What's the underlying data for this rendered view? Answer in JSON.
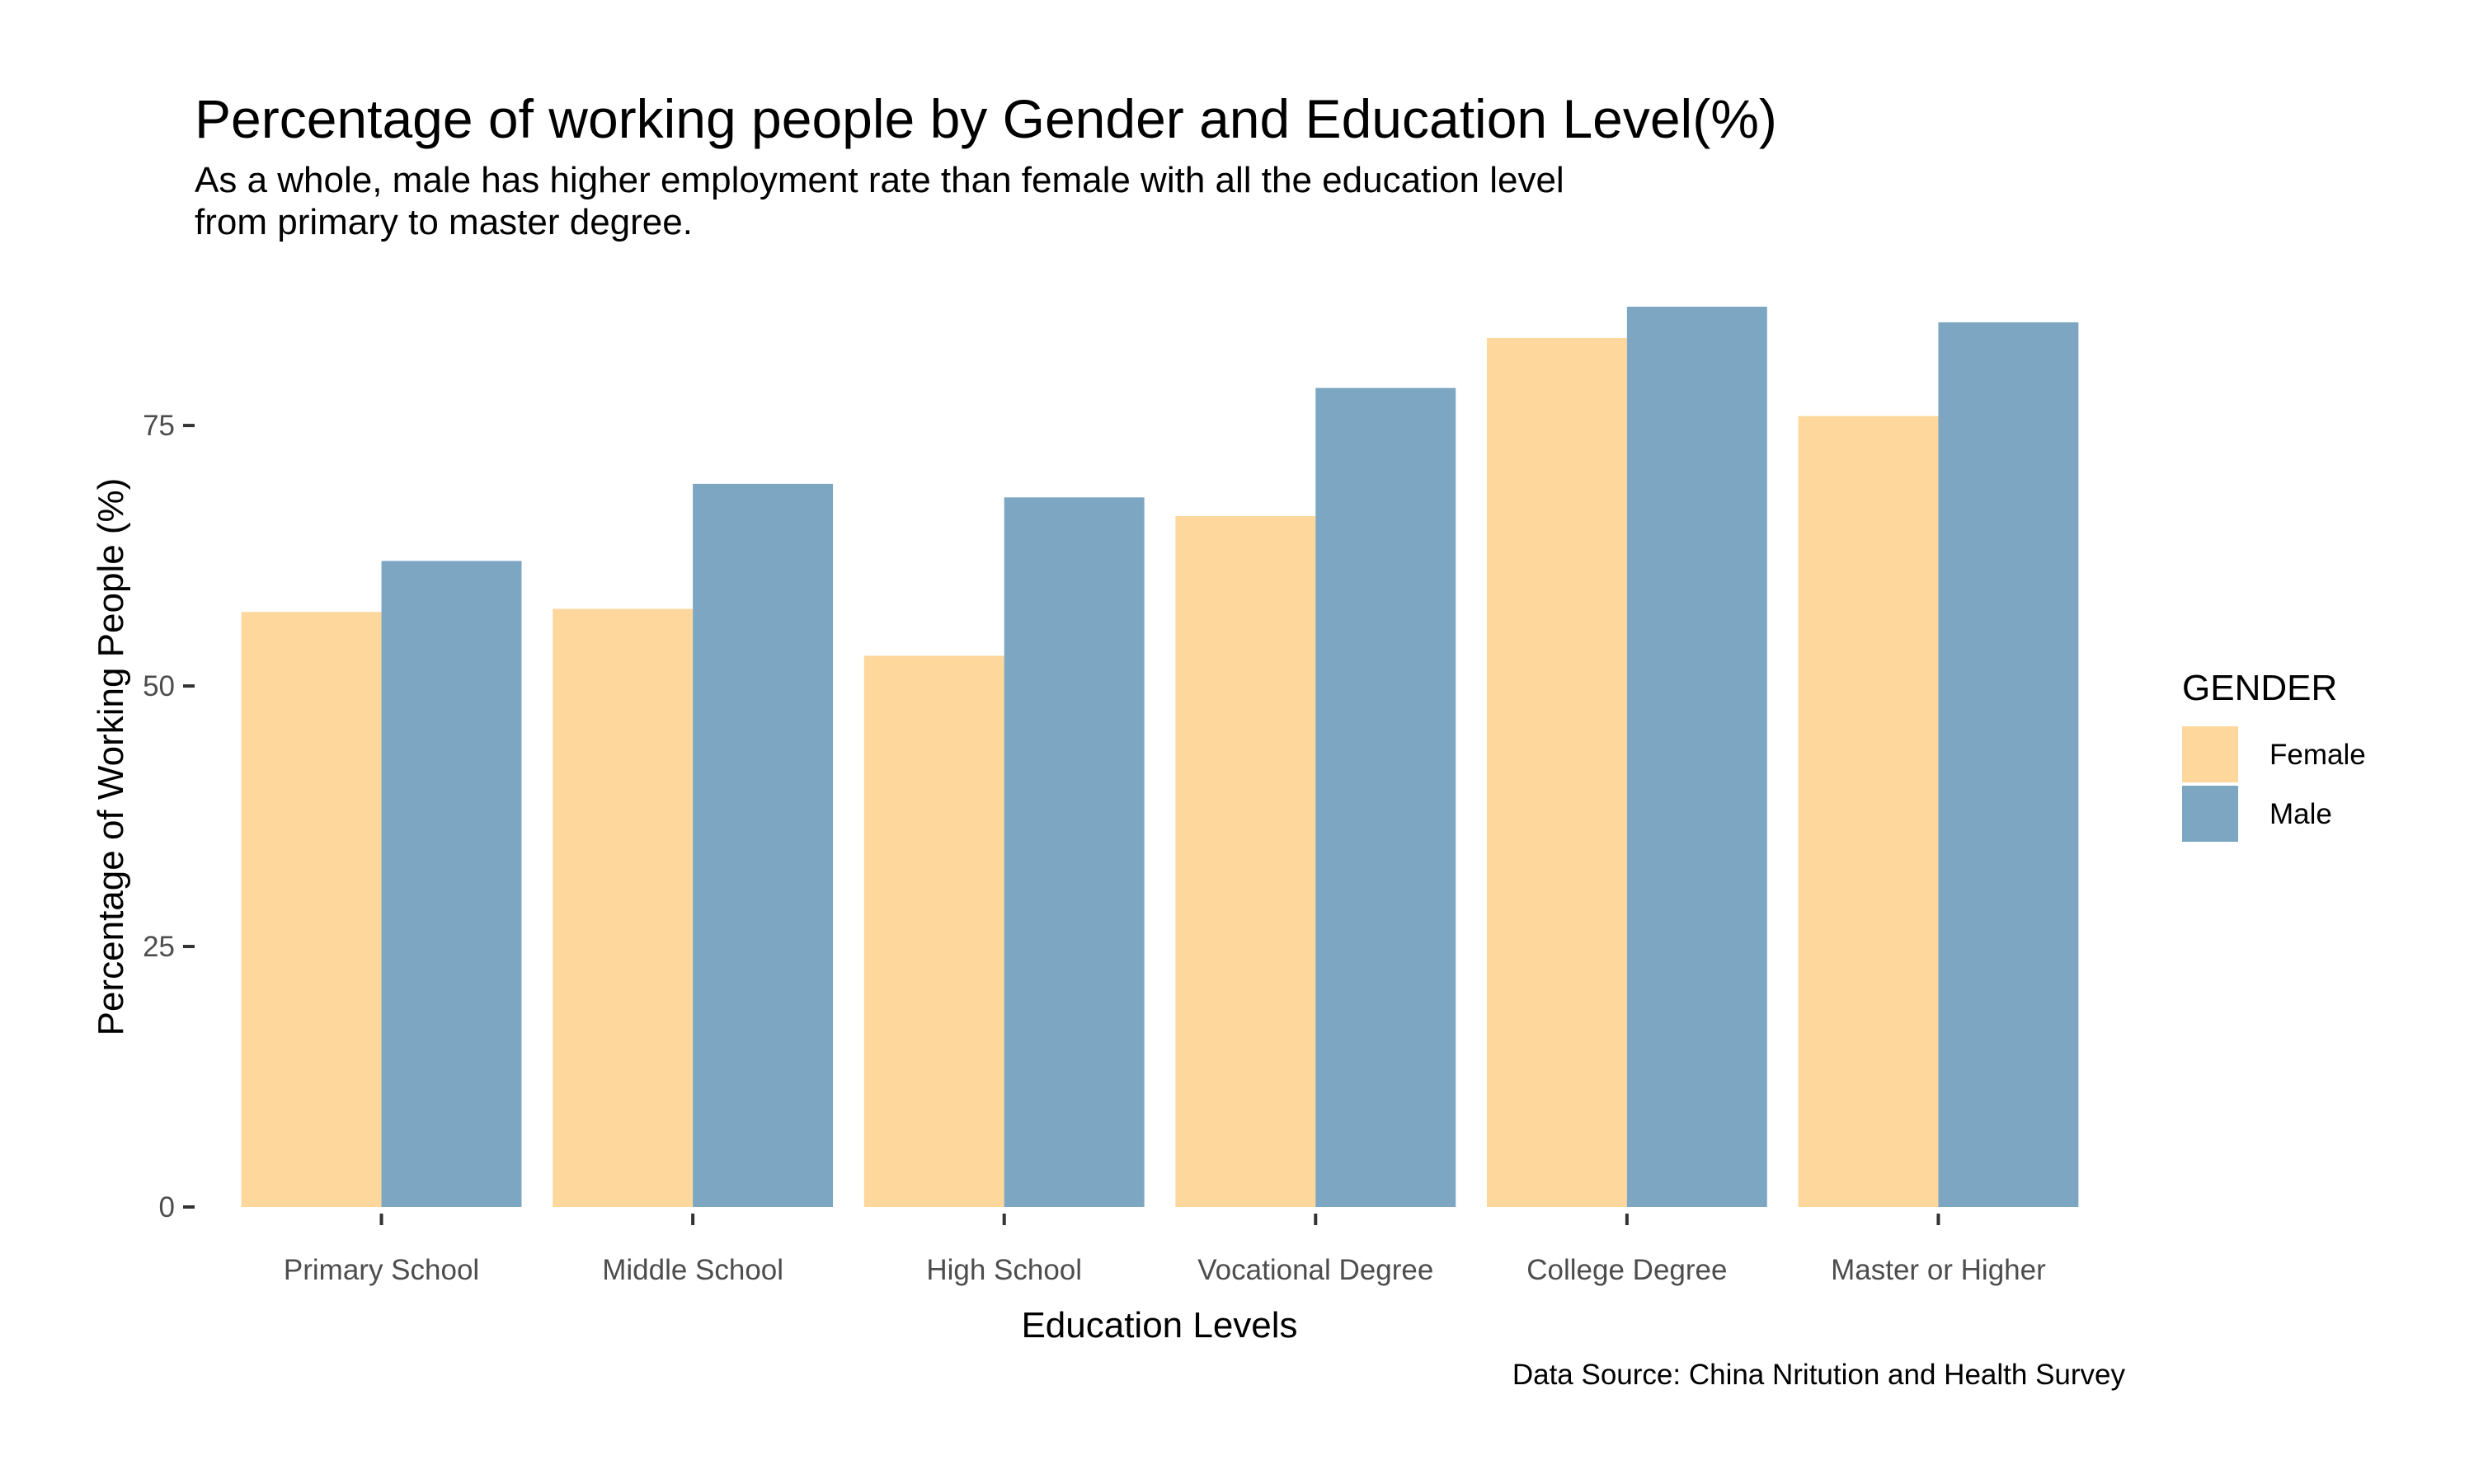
{
  "chart_data": {
    "type": "bar",
    "title": "Percentage of working people by Gender and Education Level(%)",
    "subtitle_lines": [
      "As a whole, male has higher employment rate than female with all the education level",
      "from primary to master degree."
    ],
    "xlabel": "Education Levels",
    "ylabel": "Percentage of Working People (%)",
    "caption": "Data Source: China Nritution and Health Survey",
    "categories": [
      "Primary School",
      "Middle School",
      "High School",
      "Vocational Degree",
      "College Degree",
      "Master or Higher"
    ],
    "series": [
      {
        "name": "Female",
        "color": "#FDD79C",
        "values": [
          57.1,
          57.4,
          52.9,
          66.3,
          83.4,
          75.9
        ]
      },
      {
        "name": "Male",
        "color": "#7CA6C2",
        "values": [
          62.0,
          69.4,
          68.1,
          78.6,
          86.4,
          84.9
        ]
      }
    ],
    "ylim": [
      0,
      86.4
    ],
    "yticks": [
      0,
      25,
      50,
      75
    ],
    "grid": false,
    "legend": {
      "title": "GENDER",
      "position": "right"
    }
  }
}
